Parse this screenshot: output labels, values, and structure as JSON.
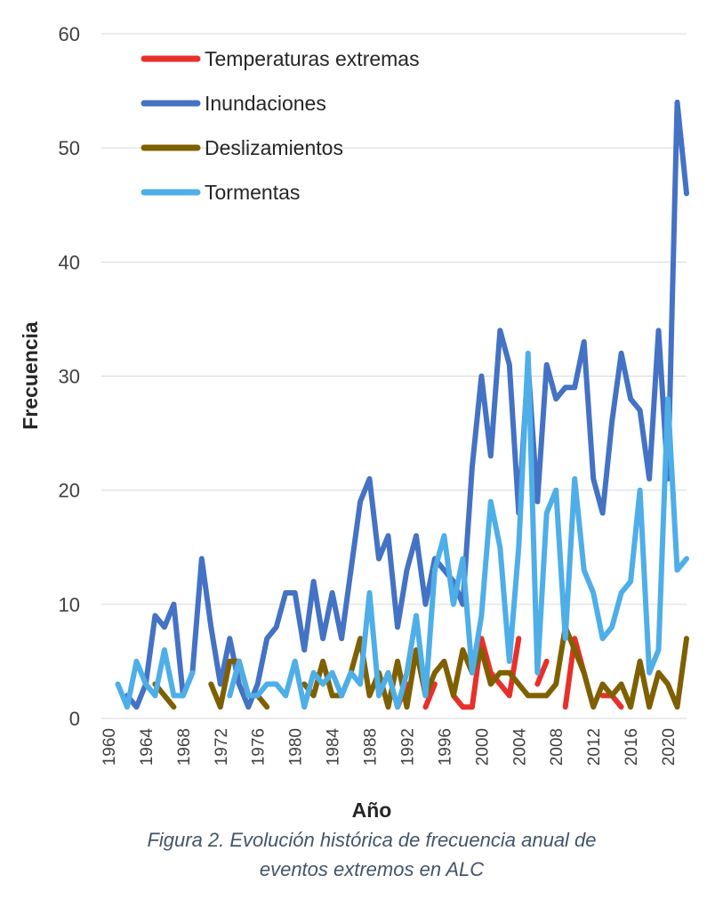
{
  "chart_data": {
    "type": "line",
    "title": "",
    "xlabel": "Año",
    "ylabel": "Frecuencia",
    "ylim": [
      0,
      60
    ],
    "yticks": [
      "0",
      "10",
      "20",
      "30",
      "40",
      "50",
      "60"
    ],
    "xlim": [
      1960,
      2022
    ],
    "xticks": [
      "1960",
      "1964",
      "1968",
      "1972",
      "1976",
      "1980",
      "1984",
      "1988",
      "1992",
      "1996",
      "2000",
      "2004",
      "2008",
      "2012",
      "2016",
      "2020"
    ],
    "legend_position": "top-left",
    "grid": "horizontal",
    "caption_lines": [
      "Figura 2. Evolución histórica de frecuencia anual de",
      "eventos extremos en ALC"
    ],
    "series": [
      {
        "name": "Temperaturas extremas",
        "color": "#e8302a",
        "points": [
          [
            1991,
            1
          ],
          [
            1992,
            3
          ],
          [
            null,
            null
          ],
          [
            1994,
            1
          ],
          [
            1995,
            3
          ],
          [
            null,
            null
          ],
          [
            1997,
            2
          ],
          [
            1998,
            1
          ],
          [
            1999,
            1
          ],
          [
            2000,
            7
          ],
          [
            2001,
            4
          ],
          [
            2002,
            3
          ],
          [
            2003,
            2
          ],
          [
            2004,
            7
          ],
          [
            null,
            null
          ],
          [
            2006,
            3
          ],
          [
            2007,
            5
          ],
          [
            null,
            null
          ],
          [
            2009,
            1
          ],
          [
            2010,
            7
          ],
          [
            2011,
            4
          ],
          [
            null,
            null
          ],
          [
            2013,
            2
          ],
          [
            2014,
            2
          ],
          [
            2015,
            1
          ]
        ]
      },
      {
        "name": "Inundaciones",
        "color": "#4472c4",
        "points": [
          [
            1962,
            2
          ],
          [
            1963,
            1
          ],
          [
            1964,
            3
          ],
          [
            1965,
            9
          ],
          [
            1966,
            8
          ],
          [
            1967,
            10
          ],
          [
            1968,
            2
          ],
          [
            1969,
            4
          ],
          [
            1970,
            14
          ],
          [
            1971,
            8
          ],
          [
            1972,
            3
          ],
          [
            1973,
            7
          ],
          [
            1974,
            3
          ],
          [
            1975,
            1
          ],
          [
            1976,
            3
          ],
          [
            1977,
            7
          ],
          [
            1978,
            8
          ],
          [
            1979,
            11
          ],
          [
            1980,
            11
          ],
          [
            1981,
            6
          ],
          [
            1982,
            12
          ],
          [
            1983,
            7
          ],
          [
            1984,
            11
          ],
          [
            1985,
            7
          ],
          [
            1986,
            13
          ],
          [
            1987,
            19
          ],
          [
            1988,
            21
          ],
          [
            1989,
            14
          ],
          [
            1990,
            16
          ],
          [
            1991,
            8
          ],
          [
            1992,
            13
          ],
          [
            1993,
            16
          ],
          [
            1994,
            10
          ],
          [
            1995,
            14
          ],
          [
            1996,
            13
          ],
          [
            1997,
            12
          ],
          [
            1998,
            10
          ],
          [
            1999,
            22
          ],
          [
            2000,
            30
          ],
          [
            2001,
            23
          ],
          [
            2002,
            34
          ],
          [
            2003,
            31
          ],
          [
            2004,
            18
          ],
          [
            2005,
            31
          ],
          [
            2006,
            19
          ],
          [
            2007,
            31
          ],
          [
            2008,
            28
          ],
          [
            2009,
            29
          ],
          [
            2010,
            29
          ],
          [
            2011,
            33
          ],
          [
            2012,
            21
          ],
          [
            2013,
            18
          ],
          [
            2014,
            26
          ],
          [
            2015,
            32
          ],
          [
            2016,
            28
          ],
          [
            2017,
            27
          ],
          [
            2018,
            21
          ],
          [
            2019,
            34
          ],
          [
            2020,
            21
          ],
          [
            2021,
            54
          ],
          [
            2022,
            46
          ]
        ]
      },
      {
        "name": "Deslizamientos",
        "color": "#7f6000",
        "points": [
          [
            1965,
            3
          ],
          [
            1966,
            2
          ],
          [
            1967,
            1
          ],
          [
            null,
            null
          ],
          [
            1971,
            3
          ],
          [
            1972,
            1
          ],
          [
            1973,
            5
          ],
          [
            1974,
            5
          ],
          [
            1975,
            2
          ],
          [
            1976,
            2
          ],
          [
            1977,
            1
          ],
          [
            null,
            null
          ],
          [
            1981,
            3
          ],
          [
            1982,
            2
          ],
          [
            1983,
            5
          ],
          [
            1984,
            2
          ],
          [
            1985,
            2
          ],
          [
            1986,
            4
          ],
          [
            1987,
            7
          ],
          [
            1988,
            2
          ],
          [
            1989,
            4
          ],
          [
            1990,
            1
          ],
          [
            1991,
            5
          ],
          [
            1992,
            1
          ],
          [
            1993,
            6
          ],
          [
            1994,
            2
          ],
          [
            1995,
            4
          ],
          [
            1996,
            5
          ],
          [
            1997,
            2
          ],
          [
            1998,
            6
          ],
          [
            1999,
            4
          ],
          [
            2000,
            6
          ],
          [
            2001,
            3
          ],
          [
            2002,
            4
          ],
          [
            2003,
            4
          ],
          [
            2004,
            3
          ],
          [
            2005,
            2
          ],
          [
            2006,
            2
          ],
          [
            2007,
            2
          ],
          [
            2008,
            3
          ],
          [
            2009,
            8
          ],
          [
            2010,
            6
          ],
          [
            2011,
            4
          ],
          [
            2012,
            1
          ],
          [
            2013,
            3
          ],
          [
            2014,
            2
          ],
          [
            2015,
            3
          ],
          [
            2016,
            1
          ],
          [
            2017,
            5
          ],
          [
            2018,
            1
          ],
          [
            2019,
            4
          ],
          [
            2020,
            3
          ],
          [
            2021,
            1
          ],
          [
            2022,
            7
          ]
        ]
      },
      {
        "name": "Tormentas",
        "color": "#4eaee8",
        "points": [
          [
            1961,
            3
          ],
          [
            1962,
            1
          ],
          [
            1963,
            5
          ],
          [
            1964,
            3
          ],
          [
            1965,
            2
          ],
          [
            1966,
            6
          ],
          [
            1967,
            2
          ],
          [
            1968,
            2
          ],
          [
            1969,
            4
          ],
          [
            null,
            null
          ],
          [
            1973,
            2
          ],
          [
            1974,
            5
          ],
          [
            1975,
            2
          ],
          [
            1976,
            2
          ],
          [
            1977,
            3
          ],
          [
            1978,
            3
          ],
          [
            1979,
            2
          ],
          [
            1980,
            5
          ],
          [
            1981,
            1
          ],
          [
            1982,
            4
          ],
          [
            1983,
            3
          ],
          [
            1984,
            4
          ],
          [
            1985,
            2
          ],
          [
            1986,
            4
          ],
          [
            1987,
            3
          ],
          [
            1988,
            11
          ],
          [
            1989,
            2
          ],
          [
            1990,
            4
          ],
          [
            1991,
            1
          ],
          [
            1992,
            4
          ],
          [
            1993,
            9
          ],
          [
            1994,
            2
          ],
          [
            1995,
            13
          ],
          [
            1996,
            16
          ],
          [
            1997,
            10
          ],
          [
            1998,
            14
          ],
          [
            1999,
            4
          ],
          [
            2000,
            9
          ],
          [
            2001,
            19
          ],
          [
            2002,
            15
          ],
          [
            2003,
            5
          ],
          [
            2004,
            15
          ],
          [
            2005,
            32
          ],
          [
            2006,
            4
          ],
          [
            2007,
            18
          ],
          [
            2008,
            20
          ],
          [
            2009,
            7
          ],
          [
            2010,
            21
          ],
          [
            2011,
            13
          ],
          [
            2012,
            11
          ],
          [
            2013,
            7
          ],
          [
            2014,
            8
          ],
          [
            2015,
            11
          ],
          [
            2016,
            12
          ],
          [
            2017,
            20
          ],
          [
            2018,
            4
          ],
          [
            2019,
            6
          ],
          [
            2020,
            28
          ],
          [
            2021,
            13
          ],
          [
            2022,
            14
          ]
        ]
      }
    ]
  }
}
